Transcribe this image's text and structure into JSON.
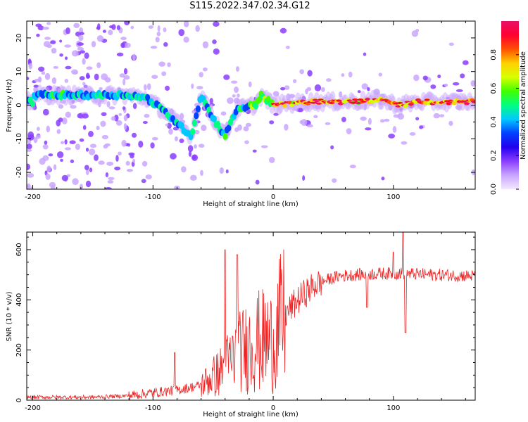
{
  "figure": {
    "title": "S115.2022.347.02.34.G12"
  },
  "chart_data": [
    {
      "type": "heatmap",
      "xlabel": "Height of straight line (km)",
      "ylabel": "Frequency (Hz)",
      "xlim": [
        -205,
        168
      ],
      "ylim": [
        -25,
        25
      ],
      "xticks": [
        -200,
        -100,
        0,
        100
      ],
      "yticks": [
        -20,
        -10,
        0,
        10,
        20
      ],
      "colorbar": {
        "label": "Normalized spectral amplitude",
        "range": [
          0,
          1
        ],
        "ticks": [
          0.0,
          0.2,
          0.4,
          0.6,
          0.8
        ],
        "tick_labels": [
          "0.0",
          "0.2",
          "0.4",
          "0.6",
          "0.8"
        ],
        "colormap": [
          "#f4e8ff",
          "#c9a6ff",
          "#8a3dff",
          "#2200ee",
          "#0040ff",
          "#00c8ff",
          "#00ff80",
          "#40ff00",
          "#d8ff00",
          "#ffd000",
          "#ff5000",
          "#ff0030",
          "#e8106a"
        ]
      },
      "ridge": {
        "description_points": [
          {
            "x": -200,
            "y": 3
          },
          {
            "x": -150,
            "y": 3
          },
          {
            "x": -120,
            "y": 3
          },
          {
            "x": -105,
            "y": 2
          },
          {
            "x": -90,
            "y": -2
          },
          {
            "x": -75,
            "y": -7
          },
          {
            "x": -68,
            "y": -9
          },
          {
            "x": -60,
            "y": 3
          },
          {
            "x": -50,
            "y": -4
          },
          {
            "x": -40,
            "y": -9
          },
          {
            "x": -30,
            "y": -1
          },
          {
            "x": -15,
            "y": 0
          },
          {
            "x": -10,
            "y": 3
          },
          {
            "x": 0,
            "y": 0
          },
          {
            "x": 30,
            "y": 1
          },
          {
            "x": 60,
            "y": 1
          },
          {
            "x": 90,
            "y": 1.5
          },
          {
            "x": 105,
            "y": 0
          },
          {
            "x": 120,
            "y": 1
          },
          {
            "x": 168,
            "y": 1
          }
        ]
      }
    },
    {
      "type": "line",
      "xlabel": "Height of straight line (km)",
      "ylabel": "SNR (10 * v/v)",
      "xlim": [
        -205,
        168
      ],
      "ylim": [
        0,
        670
      ],
      "xticks": [
        -200,
        -100,
        0,
        100
      ],
      "yticks": [
        0,
        200,
        400,
        600
      ],
      "color": "#ee2222",
      "envelope": [
        {
          "x": -205,
          "y": 12
        },
        {
          "x": -150,
          "y": 12
        },
        {
          "x": -120,
          "y": 18
        },
        {
          "x": -100,
          "y": 30
        },
        {
          "x": -80,
          "y": 40
        },
        {
          "x": -60,
          "y": 60
        },
        {
          "x": -45,
          "y": 110
        },
        {
          "x": -35,
          "y": 160
        },
        {
          "x": -25,
          "y": 200
        },
        {
          "x": -15,
          "y": 230
        },
        {
          "x": -5,
          "y": 240
        },
        {
          "x": 0,
          "y": 230
        },
        {
          "x": 5,
          "y": 300
        },
        {
          "x": 15,
          "y": 370
        },
        {
          "x": 25,
          "y": 420
        },
        {
          "x": 35,
          "y": 460
        },
        {
          "x": 45,
          "y": 480
        },
        {
          "x": 55,
          "y": 495
        },
        {
          "x": 70,
          "y": 500
        },
        {
          "x": 90,
          "y": 505
        },
        {
          "x": 110,
          "y": 505
        },
        {
          "x": 130,
          "y": 500
        },
        {
          "x": 168,
          "y": 495
        }
      ],
      "spikes": [
        {
          "x": -82,
          "y": 190
        },
        {
          "x": -40,
          "y": 600
        },
        {
          "x": -30,
          "y": 580
        },
        {
          "x": 78,
          "y": 370
        },
        {
          "x": 100,
          "y": 590
        },
        {
          "x": 108,
          "y": 670
        },
        {
          "x": 110,
          "y": 270
        }
      ]
    }
  ]
}
